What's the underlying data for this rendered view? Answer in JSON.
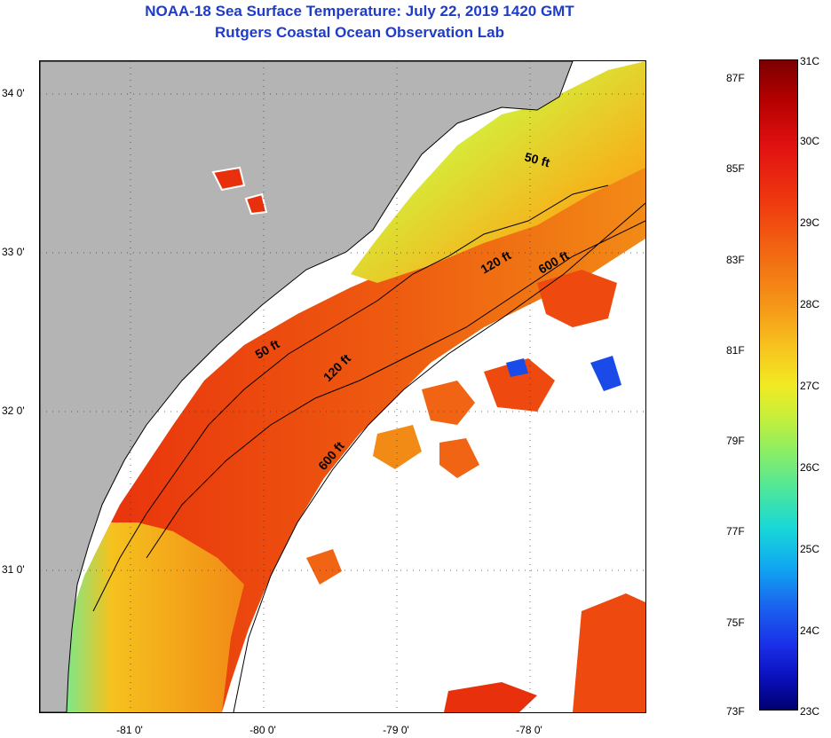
{
  "header": {
    "title": "NOAA-18 Sea Surface Temperature:  July 22, 2019 1420 GMT",
    "subtitle": "Rutgers Coastal Ocean Observation Lab"
  },
  "map": {
    "latitude_labels": [
      "34 0'",
      "33 0'",
      "32 0'",
      "31 0'"
    ],
    "longitude_labels": [
      "-81 0'",
      "-80 0'",
      "-79 0'",
      "-78 0'"
    ],
    "contour_labels": [
      "50 ft",
      "120 ft",
      "600 ft",
      "50 ft",
      "120 ft",
      "600 ft"
    ],
    "colors": {
      "land": "#b4b4b4",
      "cloud_no_data": "#ffffff",
      "coastline": "#000000",
      "warm": "#e8300c",
      "mid": "#f08a14",
      "cool": "#4ee0b0"
    }
  },
  "colorbar": {
    "fahrenheit_labels": [
      "87F",
      "85F",
      "83F",
      "81F",
      "79F",
      "77F",
      "75F",
      "73F"
    ],
    "celsius_labels": [
      "31C",
      "30C",
      "29C",
      "28C",
      "27C",
      "26C",
      "25C",
      "24C",
      "23C"
    ],
    "range_f": [
      73,
      88
    ],
    "range_c": [
      23,
      31
    ]
  }
}
